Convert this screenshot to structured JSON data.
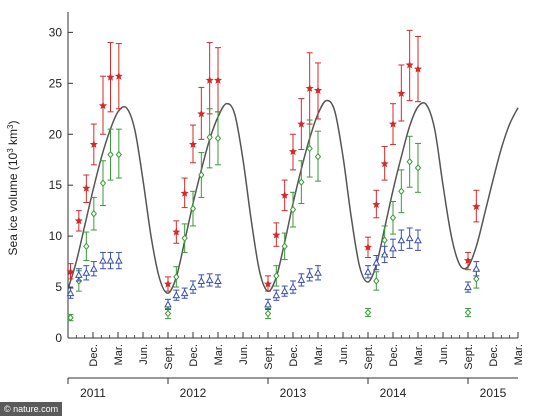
{
  "chart_data": {
    "type": "scatter",
    "ylabel": "Sea ice volume (10",
    "ylabel_sup": "3",
    "ylabel_unit": " km",
    "ylabel_sup2": "3",
    "ylabel_close": ")",
    "ylim": [
      0,
      32
    ],
    "yticks": [
      "0",
      "5",
      "10",
      "15",
      "20",
      "25",
      "30"
    ],
    "ytick_values": [
      0,
      5,
      10,
      15,
      20,
      25,
      30
    ],
    "xlim": [
      0,
      54
    ],
    "month_ticks": [
      {
        "x": 3,
        "label": "Dec."
      },
      {
        "x": 6,
        "label": "Mar."
      },
      {
        "x": 9,
        "label": "Jun."
      },
      {
        "x": 12,
        "label": "Sept."
      },
      {
        "x": 15,
        "label": "Dec."
      },
      {
        "x": 18,
        "label": "Mar."
      },
      {
        "x": 21,
        "label": "Jun."
      },
      {
        "x": 24,
        "label": "Sept."
      },
      {
        "x": 27,
        "label": "Dec."
      },
      {
        "x": 30,
        "label": "Mar."
      },
      {
        "x": 33,
        "label": "Jun."
      },
      {
        "x": 36,
        "label": "Sept."
      },
      {
        "x": 39,
        "label": "Dec."
      },
      {
        "x": 42,
        "label": "Mar."
      },
      {
        "x": 45,
        "label": "Jun."
      },
      {
        "x": 48,
        "label": "Sept."
      },
      {
        "x": 51,
        "label": "Dec."
      },
      {
        "x": 54,
        "label": "Mar."
      }
    ],
    "year_labels": [
      {
        "x": 3,
        "label": "2011"
      },
      {
        "x": 15,
        "label": "2012"
      },
      {
        "x": 27,
        "label": "2013"
      },
      {
        "x": 39,
        "label": "2014"
      },
      {
        "x": 51,
        "label": "2015"
      }
    ],
    "year_bounds": [
      0,
      12,
      24,
      36,
      48
    ],
    "series": [
      {
        "marker": "star",
        "color": "#d42a2a",
        "points": [
          {
            "x": 0.3,
            "y": 6.5,
            "lo": 5.8,
            "hi": 7.3
          },
          {
            "x": 1.3,
            "y": 11.5,
            "lo": 10.5,
            "hi": 12.5
          },
          {
            "x": 2.2,
            "y": 14.7,
            "lo": 13.3,
            "hi": 16.0
          },
          {
            "x": 3.1,
            "y": 19.0,
            "lo": 17.0,
            "hi": 21.0
          },
          {
            "x": 4.2,
            "y": 22.8,
            "lo": 20.0,
            "hi": 25.7
          },
          {
            "x": 5.1,
            "y": 25.6,
            "lo": 22.2,
            "hi": 29.0
          },
          {
            "x": 6.1,
            "y": 25.7,
            "lo": 22.5,
            "hi": 28.9
          },
          {
            "x": 12.0,
            "y": 5.3,
            "lo": 4.6,
            "hi": 6.0
          },
          {
            "x": 13.0,
            "y": 10.4,
            "lo": 9.3,
            "hi": 11.5
          },
          {
            "x": 14.0,
            "y": 14.2,
            "lo": 12.8,
            "hi": 15.7
          },
          {
            "x": 15.0,
            "y": 19.0,
            "lo": 17.2,
            "hi": 20.9
          },
          {
            "x": 16.0,
            "y": 22.0,
            "lo": 19.5,
            "hi": 24.6
          },
          {
            "x": 17.0,
            "y": 25.3,
            "lo": 22.0,
            "hi": 29.0
          },
          {
            "x": 18.0,
            "y": 25.3,
            "lo": 22.2,
            "hi": 28.5
          },
          {
            "x": 24.0,
            "y": 5.3,
            "lo": 4.6,
            "hi": 6.1
          },
          {
            "x": 25.0,
            "y": 10.1,
            "lo": 9.0,
            "hi": 11.3
          },
          {
            "x": 26.0,
            "y": 14.0,
            "lo": 12.5,
            "hi": 15.5
          },
          {
            "x": 27.0,
            "y": 18.3,
            "lo": 16.5,
            "hi": 20.0
          },
          {
            "x": 28.0,
            "y": 21.0,
            "lo": 18.5,
            "hi": 23.5
          },
          {
            "x": 29.0,
            "y": 24.5,
            "lo": 21.0,
            "hi": 28.0
          },
          {
            "x": 30.0,
            "y": 24.3,
            "lo": 21.5,
            "hi": 27.0
          },
          {
            "x": 36.0,
            "y": 8.9,
            "lo": 7.9,
            "hi": 9.9
          },
          {
            "x": 37.0,
            "y": 13.1,
            "lo": 11.8,
            "hi": 14.5
          },
          {
            "x": 38.0,
            "y": 17.1,
            "lo": 15.5,
            "hi": 18.8
          },
          {
            "x": 39.0,
            "y": 21.0,
            "lo": 19.0,
            "hi": 23.0
          },
          {
            "x": 40.0,
            "y": 24.0,
            "lo": 21.3,
            "hi": 26.8
          },
          {
            "x": 41.0,
            "y": 26.8,
            "lo": 23.3,
            "hi": 30.2
          },
          {
            "x": 42.0,
            "y": 26.4,
            "lo": 23.2,
            "hi": 29.6
          },
          {
            "x": 48.0,
            "y": 7.6,
            "lo": 6.7,
            "hi": 8.4
          },
          {
            "x": 49.0,
            "y": 12.9,
            "lo": 11.4,
            "hi": 14.5
          }
        ]
      },
      {
        "marker": "diamond",
        "color": "#3a9a3a",
        "points": [
          {
            "x": 0.3,
            "y": 2.0,
            "lo": 1.7,
            "hi": 2.3
          },
          {
            "x": 1.3,
            "y": 5.6,
            "lo": 4.6,
            "hi": 6.6
          },
          {
            "x": 2.2,
            "y": 9.0,
            "lo": 7.6,
            "hi": 10.4
          },
          {
            "x": 3.1,
            "y": 12.2,
            "lo": 10.6,
            "hi": 13.8
          },
          {
            "x": 4.2,
            "y": 15.2,
            "lo": 13.0,
            "hi": 17.4
          },
          {
            "x": 5.1,
            "y": 18.0,
            "lo": 15.5,
            "hi": 20.5
          },
          {
            "x": 6.1,
            "y": 18.0,
            "lo": 15.7,
            "hi": 20.5
          },
          {
            "x": 12.0,
            "y": 2.4,
            "lo": 1.9,
            "hi": 2.9
          },
          {
            "x": 13.0,
            "y": 6.0,
            "lo": 5.0,
            "hi": 7.0
          },
          {
            "x": 14.0,
            "y": 9.8,
            "lo": 8.4,
            "hi": 11.2
          },
          {
            "x": 15.0,
            "y": 12.7,
            "lo": 11.0,
            "hi": 14.4
          },
          {
            "x": 16.0,
            "y": 16.0,
            "lo": 13.8,
            "hi": 18.2
          },
          {
            "x": 17.0,
            "y": 19.7,
            "lo": 16.7,
            "hi": 22.5
          },
          {
            "x": 18.0,
            "y": 19.6,
            "lo": 17.0,
            "hi": 22.2
          },
          {
            "x": 24.0,
            "y": 2.4,
            "lo": 1.9,
            "hi": 2.9
          },
          {
            "x": 25.0,
            "y": 6.1,
            "lo": 5.1,
            "hi": 7.1
          },
          {
            "x": 26.0,
            "y": 9.0,
            "lo": 7.7,
            "hi": 10.3
          },
          {
            "x": 27.0,
            "y": 12.6,
            "lo": 10.9,
            "hi": 14.3
          },
          {
            "x": 28.0,
            "y": 15.3,
            "lo": 13.2,
            "hi": 17.4
          },
          {
            "x": 29.0,
            "y": 18.6,
            "lo": 15.8,
            "hi": 21.4
          },
          {
            "x": 30.0,
            "y": 17.8,
            "lo": 15.4,
            "hi": 20.3
          },
          {
            "x": 36.0,
            "y": 2.5,
            "lo": 2.1,
            "hi": 2.9
          },
          {
            "x": 37.0,
            "y": 5.6,
            "lo": 4.7,
            "hi": 6.5
          },
          {
            "x": 38.0,
            "y": 9.6,
            "lo": 8.2,
            "hi": 11.0
          },
          {
            "x": 39.0,
            "y": 11.8,
            "lo": 10.2,
            "hi": 13.4
          },
          {
            "x": 40.0,
            "y": 14.4,
            "lo": 12.3,
            "hi": 16.5
          },
          {
            "x": 41.0,
            "y": 17.3,
            "lo": 14.8,
            "hi": 19.8
          },
          {
            "x": 42.0,
            "y": 16.7,
            "lo": 14.3,
            "hi": 19.1
          },
          {
            "x": 48.0,
            "y": 2.5,
            "lo": 2.1,
            "hi": 2.9
          },
          {
            "x": 49.0,
            "y": 5.8,
            "lo": 4.9,
            "hi": 6.7
          }
        ]
      },
      {
        "marker": "triangle",
        "color": "#3b4fb0",
        "points": [
          {
            "x": 0.3,
            "y": 4.4,
            "lo": 3.9,
            "hi": 4.9
          },
          {
            "x": 1.3,
            "y": 6.2,
            "lo": 5.6,
            "hi": 6.8
          },
          {
            "x": 2.2,
            "y": 6.4,
            "lo": 5.7,
            "hi": 7.1
          },
          {
            "x": 3.1,
            "y": 6.8,
            "lo": 6.1,
            "hi": 7.5
          },
          {
            "x": 4.2,
            "y": 7.6,
            "lo": 6.8,
            "hi": 8.4
          },
          {
            "x": 5.1,
            "y": 7.6,
            "lo": 6.8,
            "hi": 8.4
          },
          {
            "x": 6.1,
            "y": 7.6,
            "lo": 6.8,
            "hi": 8.4
          },
          {
            "x": 12.0,
            "y": 3.3,
            "lo": 2.8,
            "hi": 3.8
          },
          {
            "x": 13.0,
            "y": 4.2,
            "lo": 3.7,
            "hi": 4.7
          },
          {
            "x": 14.0,
            "y": 4.4,
            "lo": 3.9,
            "hi": 4.9
          },
          {
            "x": 15.0,
            "y": 5.0,
            "lo": 4.4,
            "hi": 5.6
          },
          {
            "x": 16.0,
            "y": 5.6,
            "lo": 5.0,
            "hi": 6.2
          },
          {
            "x": 17.0,
            "y": 5.7,
            "lo": 5.1,
            "hi": 6.3
          },
          {
            "x": 18.0,
            "y": 5.6,
            "lo": 5.0,
            "hi": 6.2
          },
          {
            "x": 24.0,
            "y": 3.3,
            "lo": 2.8,
            "hi": 3.8
          },
          {
            "x": 25.0,
            "y": 4.2,
            "lo": 3.7,
            "hi": 4.7
          },
          {
            "x": 26.0,
            "y": 4.6,
            "lo": 4.1,
            "hi": 5.1
          },
          {
            "x": 27.0,
            "y": 5.0,
            "lo": 4.4,
            "hi": 5.6
          },
          {
            "x": 28.0,
            "y": 5.7,
            "lo": 5.1,
            "hi": 6.3
          },
          {
            "x": 29.0,
            "y": 6.2,
            "lo": 5.6,
            "hi": 6.8
          },
          {
            "x": 30.0,
            "y": 6.4,
            "lo": 5.7,
            "hi": 7.1
          },
          {
            "x": 36.0,
            "y": 6.5,
            "lo": 5.9,
            "hi": 7.1
          },
          {
            "x": 37.0,
            "y": 7.4,
            "lo": 6.7,
            "hi": 8.1
          },
          {
            "x": 38.0,
            "y": 8.2,
            "lo": 7.4,
            "hi": 9.0
          },
          {
            "x": 39.0,
            "y": 8.8,
            "lo": 7.9,
            "hi": 9.7
          },
          {
            "x": 40.0,
            "y": 9.6,
            "lo": 8.6,
            "hi": 10.6
          },
          {
            "x": 41.0,
            "y": 9.8,
            "lo": 8.8,
            "hi": 10.8
          },
          {
            "x": 42.0,
            "y": 9.6,
            "lo": 8.6,
            "hi": 10.6
          },
          {
            "x": 48.0,
            "y": 5.0,
            "lo": 4.5,
            "hi": 5.5
          },
          {
            "x": 49.0,
            "y": 6.8,
            "lo": 6.1,
            "hi": 7.5
          }
        ]
      }
    ],
    "curve": {
      "color": "#555555",
      "points": [
        [
          0,
          4.8
        ],
        [
          1,
          7.5
        ],
        [
          2,
          11.0
        ],
        [
          3,
          14.5
        ],
        [
          4,
          17.7
        ],
        [
          5,
          20.3
        ],
        [
          6,
          22.2
        ],
        [
          7,
          22.6
        ],
        [
          8,
          20.5
        ],
        [
          9,
          15.5
        ],
        [
          10,
          9.8
        ],
        [
          11,
          5.8
        ],
        [
          12,
          4.4
        ],
        [
          13,
          6.0
        ],
        [
          14,
          9.5
        ],
        [
          15,
          13.2
        ],
        [
          16,
          16.5
        ],
        [
          17,
          19.5
        ],
        [
          18,
          21.7
        ],
        [
          19,
          23.0
        ],
        [
          20,
          22.0
        ],
        [
          21,
          17.5
        ],
        [
          22,
          11.5
        ],
        [
          23,
          6.5
        ],
        [
          24,
          4.6
        ],
        [
          25,
          6.0
        ],
        [
          26,
          9.4
        ],
        [
          27,
          13.2
        ],
        [
          28,
          16.6
        ],
        [
          29,
          19.6
        ],
        [
          30,
          22.0
        ],
        [
          31,
          23.3
        ],
        [
          32,
          22.3
        ],
        [
          33,
          17.8
        ],
        [
          34,
          11.8
        ],
        [
          35,
          7.0
        ],
        [
          36,
          5.5
        ],
        [
          37,
          7.2
        ],
        [
          38,
          10.8
        ],
        [
          39,
          14.5
        ],
        [
          40,
          17.8
        ],
        [
          41,
          20.8
        ],
        [
          42,
          22.7
        ],
        [
          43,
          22.9
        ],
        [
          44,
          20.5
        ],
        [
          45,
          15.0
        ],
        [
          46,
          10.0
        ],
        [
          47,
          7.2
        ],
        [
          48,
          7.0
        ],
        [
          49,
          9.0
        ],
        [
          50,
          12.2
        ],
        [
          51,
          15.5
        ],
        [
          52,
          18.6
        ],
        [
          53,
          21.0
        ],
        [
          54,
          22.6
        ]
      ]
    }
  },
  "footer": {
    "credit": "© nature.com"
  }
}
